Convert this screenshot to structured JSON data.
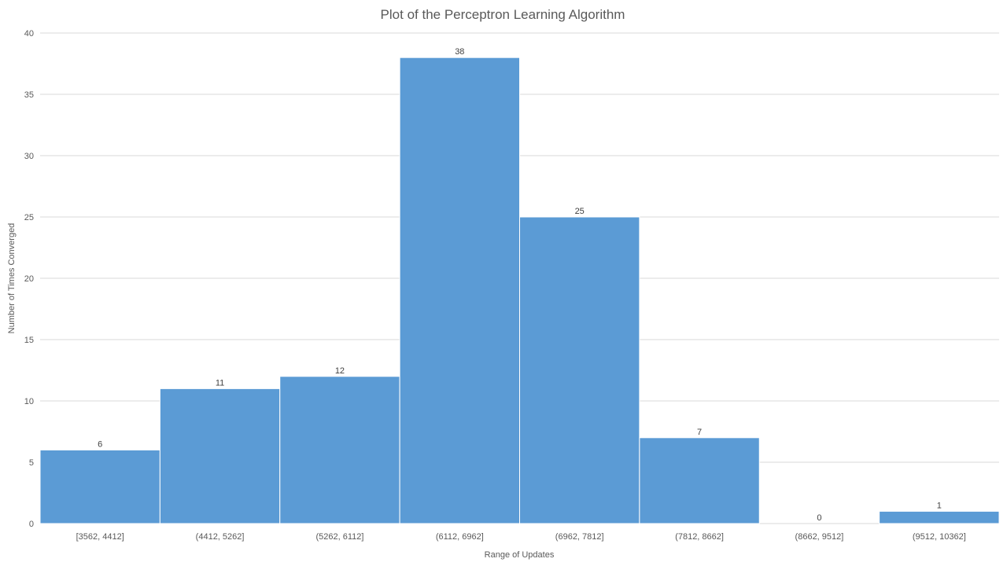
{
  "chart_data": {
    "type": "bar",
    "title": "Plot of the Perceptron Learning Algorithm",
    "xlabel": "Range of Updates",
    "ylabel": "Number of Times Converged",
    "categories": [
      "[3562, 4412]",
      "(4412, 5262]",
      "(5262, 6112]",
      "(6112, 6962]",
      "(6962, 7812]",
      "(7812, 8662]",
      "(8662, 9512]",
      "(9512, 10362]"
    ],
    "values": [
      6,
      11,
      12,
      38,
      25,
      7,
      0,
      1
    ],
    "ylim": [
      0,
      40
    ],
    "yticks": [
      0,
      5,
      10,
      15,
      20,
      25,
      30,
      35,
      40
    ],
    "grid": true,
    "legend": "none",
    "bar_color": "#5b9bd5",
    "data_labels": true
  }
}
